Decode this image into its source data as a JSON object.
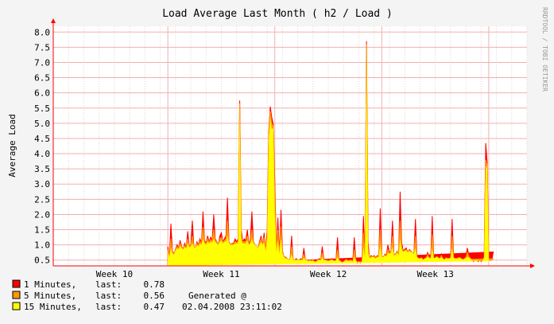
{
  "chart_data": {
    "type": "area",
    "title": "Load Average Last Month ( h2 / Load )",
    "ylabel": "Average Load",
    "watermark": "RRDTOOL / TOBI OETIKER",
    "ylim": [
      0.31,
      8.19
    ],
    "yticks": [
      "0.5",
      "1.0",
      "1.5",
      "2.0",
      "2.5",
      "3.0",
      "3.5",
      "4.0",
      "4.5",
      "5.0",
      "5.5",
      "6.0",
      "6.5",
      "7.0",
      "7.5",
      "8.0"
    ],
    "xlim": [
      0,
      31
    ],
    "xticks": [
      {
        "label": "Week 10",
        "x": 4.0
      },
      {
        "label": "Week 11",
        "x": 11.0
      },
      {
        "label": "Week 12",
        "x": 18.0
      },
      {
        "label": "Week 13",
        "x": 25.0
      }
    ],
    "grid": true,
    "colors": {
      "one_min": "#ff0000",
      "five_min": "#ff9900",
      "fifteen_min": "#ffff00",
      "axis": "#ff0000",
      "grid_major": "#f0b0b0",
      "grid_minor": "#e8d0d0",
      "canvas": "#ffffff",
      "background": "#f4f4f4"
    },
    "data": {
      "x": [
        7.5,
        7.6,
        7.7,
        7.8,
        7.9,
        8.0,
        8.1,
        8.2,
        8.3,
        8.4,
        8.5,
        8.6,
        8.7,
        8.8,
        8.9,
        9.0,
        9.1,
        9.2,
        9.3,
        9.4,
        9.5,
        9.6,
        9.7,
        9.8,
        9.9,
        10.0,
        10.1,
        10.2,
        10.3,
        10.4,
        10.5,
        10.6,
        10.7,
        10.8,
        10.9,
        11.0,
        11.1,
        11.2,
        11.3,
        11.4,
        11.5,
        11.6,
        11.7,
        11.8,
        11.9,
        12.0,
        12.1,
        12.2,
        12.3,
        12.4,
        12.5,
        12.6,
        12.7,
        12.8,
        12.9,
        13.0,
        13.1,
        13.2,
        13.3,
        13.4,
        13.5,
        13.6,
        13.7,
        13.8,
        13.9,
        14.0,
        14.1,
        14.2,
        14.3,
        14.4,
        14.5,
        14.6,
        14.7,
        14.8,
        14.9,
        15.0,
        15.1,
        15.2,
        15.3,
        15.4,
        15.5,
        15.6,
        15.7,
        15.8,
        15.9,
        16.0,
        16.1,
        16.2,
        16.3,
        16.4,
        16.5,
        16.6,
        16.7,
        16.8,
        16.9,
        17.0,
        17.1,
        17.2,
        17.3,
        17.4,
        17.5,
        17.6,
        17.7,
        17.8,
        17.9,
        18.0,
        18.1,
        18.2,
        18.3,
        18.4,
        18.5,
        18.6,
        18.7,
        18.8,
        18.9,
        19.0,
        19.1,
        19.2,
        19.3,
        19.4,
        19.5,
        19.6,
        19.7,
        19.8,
        19.9,
        20.0,
        20.1,
        20.2,
        20.3,
        20.4,
        20.5,
        20.6,
        20.7,
        20.8,
        20.9,
        21.0,
        21.1,
        21.2,
        21.3,
        21.4,
        21.5,
        21.6,
        21.7,
        21.8,
        21.9,
        22.0,
        22.1,
        22.2,
        22.3,
        22.4,
        22.5,
        22.6,
        22.7,
        22.8,
        22.9,
        23.0,
        23.1,
        23.2,
        23.3,
        23.4,
        23.5,
        23.6,
        23.7,
        23.8,
        23.9,
        24.0,
        24.1,
        24.2,
        24.3,
        24.4,
        24.5,
        24.6,
        24.7,
        24.8,
        24.9,
        25.0,
        25.1,
        25.2,
        25.3,
        25.4,
        25.5,
        25.6,
        25.7,
        25.8,
        25.9,
        26.0,
        26.1,
        26.2,
        26.3,
        26.4,
        26.5,
        26.6,
        26.7,
        26.8,
        26.9,
        27.0,
        27.1,
        27.2,
        27.3,
        27.4,
        27.5,
        27.6,
        27.7,
        27.8,
        27.9,
        28.0,
        28.1,
        28.2,
        28.3,
        28.4,
        28.5,
        28.6,
        28.7,
        28.8,
        28.9,
        29.0,
        29.1,
        29.2
      ],
      "one_min": [
        0.95,
        0.6,
        1.7,
        0.8,
        0.7,
        0.85,
        1.0,
        0.9,
        1.15,
        0.95,
        0.85,
        1.05,
        0.9,
        1.45,
        0.95,
        1.0,
        1.8,
        0.95,
        0.9,
        1.1,
        1.0,
        1.2,
        1.05,
        2.1,
        1.15,
        1.05,
        1.3,
        1.1,
        1.25,
        1.15,
        2.0,
        1.2,
        1.1,
        1.0,
        1.3,
        1.4,
        1.1,
        1.2,
        1.3,
        2.55,
        1.1,
        1.0,
        1.05,
        1.05,
        1.2,
        1.1,
        1.2,
        5.75,
        1.5,
        1.1,
        1.2,
        1.15,
        1.5,
        1.0,
        1.2,
        2.1,
        1.1,
        1.0,
        0.95,
        0.9,
        1.1,
        1.3,
        1.0,
        1.4,
        0.8,
        1.5,
        4.7,
        5.55,
        5.2,
        4.95,
        3.0,
        0.75,
        1.9,
        0.7,
        2.15,
        0.8,
        0.6,
        0.6,
        0.55,
        0.5,
        0.55,
        1.3,
        0.5,
        0.5,
        0.55,
        0.5,
        0.5,
        0.55,
        0.5,
        0.9,
        0.5,
        0.5,
        0.45,
        0.5,
        0.45,
        0.5,
        0.45,
        0.45,
        0.5,
        0.55,
        0.5,
        0.95,
        0.55,
        0.5,
        0.5,
        0.45,
        0.5,
        0.55,
        0.5,
        0.45,
        0.5,
        1.25,
        0.5,
        0.45,
        0.4,
        0.45,
        0.5,
        0.55,
        0.45,
        0.5,
        0.5,
        0.45,
        1.25,
        0.5,
        0.4,
        0.45,
        0.4,
        0.45,
        1.95,
        0.55,
        7.7,
        1.1,
        0.55,
        0.65,
        0.6,
        0.65,
        0.55,
        0.65,
        0.6,
        2.2,
        0.6,
        0.6,
        0.7,
        0.65,
        1.0,
        0.75,
        0.8,
        1.8,
        0.65,
        0.7,
        0.8,
        0.65,
        2.75,
        1.1,
        0.8,
        0.85,
        0.9,
        0.75,
        0.85,
        0.8,
        0.75,
        0.7,
        1.85,
        0.6,
        0.55,
        0.55,
        0.6,
        0.5,
        0.55,
        0.6,
        0.75,
        0.6,
        0.55,
        1.95,
        0.55,
        0.6,
        0.65,
        0.6,
        0.55,
        0.7,
        0.55,
        0.5,
        0.6,
        0.55,
        0.55,
        0.6,
        1.85,
        0.6,
        0.55,
        0.55,
        0.6,
        0.6,
        0.55,
        0.5,
        0.55,
        0.6,
        0.9,
        0.65,
        0.55,
        0.5,
        0.45,
        0.5,
        0.55,
        0.45,
        0.5,
        0.45,
        0.5,
        0.65,
        4.35,
        3.7,
        0.5,
        0.5,
        0.5,
        0.78
      ],
      "five_min": [
        0.85,
        0.6,
        1.2,
        0.75,
        0.7,
        0.82,
        0.95,
        0.88,
        1.05,
        0.92,
        0.85,
        0.98,
        0.9,
        1.2,
        0.95,
        0.98,
        1.3,
        0.95,
        0.9,
        1.05,
        0.98,
        1.12,
        1.03,
        1.6,
        1.1,
        1.03,
        1.2,
        1.08,
        1.18,
        1.12,
        1.5,
        1.15,
        1.08,
        1.0,
        1.2,
        1.25,
        1.08,
        1.15,
        1.2,
        1.8,
        1.08,
        1.0,
        1.03,
        1.03,
        1.12,
        1.08,
        1.12,
        5.65,
        1.3,
        1.08,
        1.12,
        1.1,
        1.3,
        1.0,
        1.12,
        1.5,
        1.08,
        1.0,
        0.95,
        0.9,
        1.05,
        1.2,
        1.0,
        1.25,
        0.8,
        1.3,
        4.6,
        5.4,
        5.0,
        4.9,
        2.5,
        0.75,
        1.5,
        0.7,
        1.6,
        0.75,
        0.6,
        0.58,
        0.55,
        0.5,
        0.55,
        0.95,
        0.5,
        0.5,
        0.52,
        0.5,
        0.5,
        0.52,
        0.5,
        0.7,
        0.5,
        0.5,
        0.47,
        0.5,
        0.47,
        0.5,
        0.45,
        0.45,
        0.5,
        0.52,
        0.5,
        0.75,
        0.52,
        0.5,
        0.5,
        0.47,
        0.5,
        0.52,
        0.5,
        0.47,
        0.5,
        0.85,
        0.5,
        0.47,
        0.42,
        0.45,
        0.5,
        0.52,
        0.47,
        0.5,
        0.5,
        0.45,
        0.85,
        0.5,
        0.42,
        0.45,
        0.42,
        0.45,
        1.4,
        0.55,
        7.6,
        0.9,
        0.55,
        0.62,
        0.6,
        0.62,
        0.55,
        0.62,
        0.6,
        1.5,
        0.6,
        0.6,
        0.68,
        0.62,
        0.85,
        0.72,
        0.78,
        1.3,
        0.65,
        0.68,
        0.78,
        0.65,
        1.8,
        0.95,
        0.78,
        0.82,
        0.85,
        0.75,
        0.82,
        0.78,
        0.75,
        0.7,
        1.3,
        0.6,
        0.55,
        0.55,
        0.58,
        0.5,
        0.55,
        0.58,
        0.68,
        0.58,
        0.55,
        1.35,
        0.55,
        0.58,
        0.62,
        0.58,
        0.55,
        0.65,
        0.55,
        0.5,
        0.58,
        0.55,
        0.55,
        0.58,
        1.3,
        0.58,
        0.55,
        0.55,
        0.58,
        0.58,
        0.55,
        0.5,
        0.55,
        0.58,
        0.75,
        0.62,
        0.55,
        0.5,
        0.47,
        0.5,
        0.52,
        0.47,
        0.5,
        0.47,
        0.5,
        0.6,
        3.8,
        3.6,
        0.52,
        0.5,
        0.5,
        0.56
      ],
      "fifteen_min": [
        0.8,
        0.58,
        0.9,
        0.72,
        0.68,
        0.8,
        0.9,
        0.85,
        0.98,
        0.9,
        0.85,
        0.93,
        0.88,
        1.05,
        0.92,
        0.95,
        1.05,
        0.93,
        0.9,
        1.0,
        0.95,
        1.05,
        1.0,
        1.2,
        1.05,
        1.0,
        1.12,
        1.05,
        1.1,
        1.08,
        1.2,
        1.1,
        1.05,
        1.0,
        1.1,
        1.15,
        1.05,
        1.1,
        1.12,
        1.3,
        1.05,
        1.0,
        1.0,
        1.0,
        1.05,
        1.05,
        1.05,
        5.5,
        1.15,
        1.05,
        1.05,
        1.05,
        1.15,
        1.0,
        1.05,
        1.2,
        1.05,
        1.0,
        0.95,
        0.9,
        1.0,
        1.1,
        1.0,
        1.1,
        0.8,
        1.15,
        4.4,
        5.2,
        4.8,
        4.85,
        2.0,
        0.75,
        1.15,
        0.7,
        1.2,
        0.72,
        0.6,
        0.56,
        0.54,
        0.5,
        0.53,
        0.7,
        0.5,
        0.5,
        0.5,
        0.5,
        0.5,
        0.5,
        0.5,
        0.58,
        0.5,
        0.49,
        0.47,
        0.48,
        0.47,
        0.48,
        0.45,
        0.45,
        0.48,
        0.5,
        0.49,
        0.6,
        0.5,
        0.49,
        0.48,
        0.47,
        0.48,
        0.5,
        0.49,
        0.47,
        0.48,
        0.62,
        0.48,
        0.46,
        0.43,
        0.44,
        0.47,
        0.49,
        0.46,
        0.48,
        0.48,
        0.45,
        0.62,
        0.47,
        0.43,
        0.44,
        0.43,
        0.44,
        0.95,
        0.55,
        7.4,
        0.75,
        0.55,
        0.6,
        0.6,
        0.6,
        0.55,
        0.6,
        0.6,
        1.0,
        0.6,
        0.6,
        0.65,
        0.62,
        0.75,
        0.7,
        0.75,
        0.95,
        0.65,
        0.67,
        0.75,
        0.65,
        1.2,
        0.85,
        0.77,
        0.8,
        0.82,
        0.75,
        0.8,
        0.77,
        0.75,
        0.7,
        0.9,
        0.6,
        0.56,
        0.55,
        0.56,
        0.52,
        0.54,
        0.56,
        0.62,
        0.57,
        0.55,
        0.9,
        0.56,
        0.57,
        0.6,
        0.57,
        0.55,
        0.6,
        0.55,
        0.52,
        0.56,
        0.55,
        0.55,
        0.56,
        0.9,
        0.57,
        0.55,
        0.55,
        0.56,
        0.57,
        0.55,
        0.52,
        0.54,
        0.56,
        0.62,
        0.58,
        0.55,
        0.5,
        0.48,
        0.49,
        0.5,
        0.47,
        0.48,
        0.47,
        0.48,
        0.55,
        3.6,
        3.5,
        0.5,
        0.48,
        0.47,
        0.47
      ]
    },
    "legend": [
      {
        "name": "1 Minutes,",
        "last_label": "last:",
        "last_value": "0.78",
        "color_key": "one_min",
        "extra": ""
      },
      {
        "name": "5 Minutes,",
        "last_label": "last:",
        "last_value": "0.56",
        "color_key": "five_min",
        "extra": "Generated @"
      },
      {
        "name": "15 Minutes,",
        "last_label": "last:",
        "last_value": "0.47",
        "color_key": "fifteen_min",
        "extra": "02.04.2008 23:11:02"
      }
    ]
  }
}
